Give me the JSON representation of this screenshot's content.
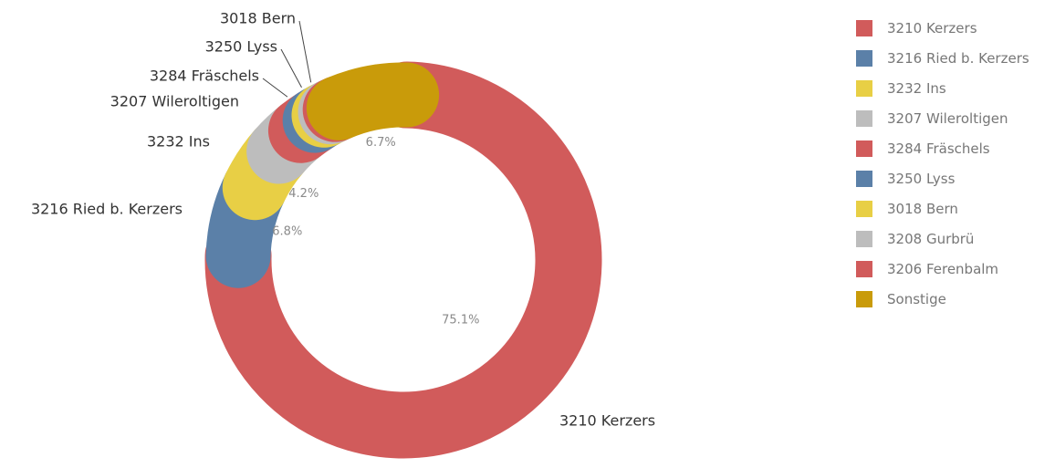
{
  "chart_data": {
    "type": "pie",
    "slices": [
      {
        "label": "3210 Kerzers",
        "value": 75.1,
        "pct_text": "75.1%",
        "color": "#d15b5b"
      },
      {
        "label": "3216 Ried b. Kerzers",
        "value": 6.8,
        "pct_text": "6.8%",
        "color": "#5b80a8"
      },
      {
        "label": "3232 Ins",
        "value": 4.2,
        "pct_text": "4.2%",
        "color": "#e8cf45"
      },
      {
        "label": "3207 Wileroltigen",
        "value": 2.9,
        "color": "#bdbdbd"
      },
      {
        "label": "3284 Fräschels",
        "value": 1.7,
        "color": "#d15b5b"
      },
      {
        "label": "3250 Lyss",
        "value": 1.0,
        "color": "#5b80a8"
      },
      {
        "label": "3018 Bern",
        "value": 0.7,
        "color": "#e8cf45"
      },
      {
        "label": "3208 Gurbrü",
        "value": 0.5,
        "color": "#bdbdbd"
      },
      {
        "label": "3206 Ferenbalm",
        "value": 0.4,
        "color": "#d15b5b"
      },
      {
        "label": "Sonstige",
        "value": 6.7,
        "pct_text": "6.7%",
        "color": "#c99b0a"
      }
    ],
    "legend_position": "right"
  }
}
